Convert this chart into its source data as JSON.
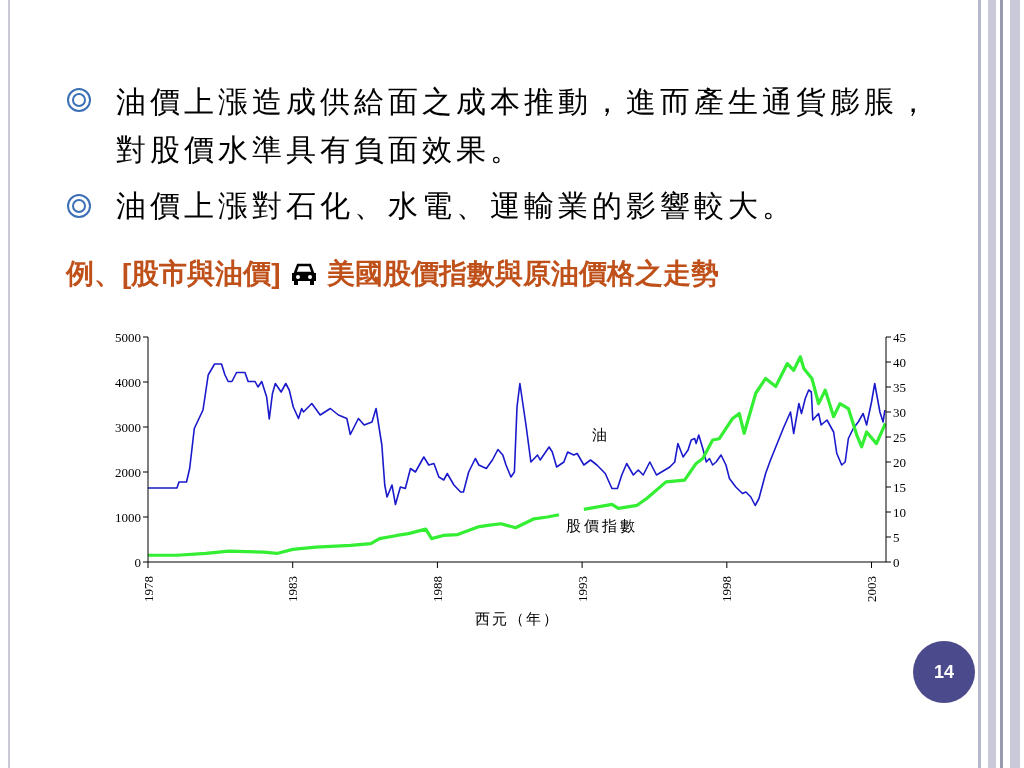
{
  "chart_data": {
    "type": "line",
    "title": "例、[股市與油價]",
    "subtitle": "美國股價指數與原油價格之走勢",
    "xlabel": "西元（年）",
    "annotations": [
      "油價上漲造成供給面之成本推動，進而產生通貨膨脹，對股價水準具有負面效果。",
      "油價上漲對石化、水電、運輸業的影響較大。",
      "14"
    ],
    "xlim": [
      1978,
      2003.5
    ],
    "xticks": [
      1978,
      1983,
      1988,
      1993,
      1998,
      2003
    ],
    "ylim": [
      0,
      5000
    ],
    "yticks": [
      0,
      1000,
      2000,
      3000,
      4000,
      5000
    ],
    "y2lim": [
      0,
      45
    ],
    "y2ticks": [
      0,
      5,
      10,
      15,
      20,
      25,
      30,
      35,
      40,
      45
    ],
    "series": [
      {
        "name": "油",
        "color": "#1a1acc",
        "axis": "y2",
        "x": [
          1978.0,
          1979.0,
          1979.07,
          1979.33,
          1979.44,
          1979.6,
          1979.9,
          1979.96,
          1980.08,
          1980.3,
          1980.54,
          1980.66,
          1980.77,
          1980.9,
          1981.06,
          1981.35,
          1981.46,
          1981.7,
          1981.8,
          1981.93,
          1982.1,
          1982.19,
          1982.3,
          1982.4,
          1982.6,
          1982.76,
          1982.88,
          1983.02,
          1983.2,
          1983.31,
          1983.37,
          1983.66,
          1983.95,
          1984.3,
          1984.58,
          1984.87,
          1984.99,
          1985.27,
          1985.47,
          1985.74,
          1985.88,
          1986.08,
          1986.18,
          1986.26,
          1986.43,
          1986.55,
          1986.72,
          1986.89,
          1987.07,
          1987.24,
          1987.53,
          1987.7,
          1987.88,
          1988.05,
          1988.22,
          1988.34,
          1988.57,
          1988.8,
          1988.9,
          1989.08,
          1989.31,
          1989.43,
          1989.69,
          1989.9,
          1990.09,
          1990.26,
          1990.37,
          1990.54,
          1990.66,
          1990.75,
          1990.85,
          1991.06,
          1991.23,
          1991.46,
          1991.55,
          1991.74,
          1991.86,
          1991.97,
          1992.12,
          1992.37,
          1992.5,
          1992.71,
          1992.83,
          1993.06,
          1993.29,
          1993.51,
          1993.8,
          1994.03,
          1994.22,
          1994.37,
          1994.54,
          1994.77,
          1994.94,
          1995.11,
          1995.34,
          1995.57,
          1995.86,
          1996.03,
          1996.2,
          1996.31,
          1996.49,
          1996.66,
          1996.77,
          1996.89,
          1996.94,
          1997.03,
          1997.17,
          1997.29,
          1997.4,
          1997.51,
          1997.63,
          1997.8,
          1997.97,
          1998.09,
          1998.31,
          1998.54,
          1998.66,
          1998.83,
          1998.98,
          1999.11,
          1999.34,
          1999.51,
          1999.74,
          1999.97,
          2000.2,
          2000.31,
          2000.49,
          2000.58,
          2000.71,
          2000.83,
          2000.92,
          2000.97,
          2001.17,
          2001.26,
          2001.46,
          2001.69,
          2001.8,
          2001.97,
          2002.09,
          2002.2,
          2002.37,
          2002.54,
          2002.71,
          2002.83,
          2003.0,
          2003.11,
          2003.29,
          2003.4,
          2003.46
        ],
        "values": [
          14.8,
          14.8,
          16.0,
          16.0,
          18.7,
          26.7,
          30.4,
          32.7,
          37.4,
          39.6,
          39.6,
          37.4,
          36.1,
          36.1,
          37.9,
          37.9,
          36.1,
          36.1,
          35.0,
          36.1,
          33.0,
          28.6,
          33.7,
          35.7,
          34.0,
          35.7,
          34.4,
          31.0,
          28.7,
          30.7,
          30.0,
          31.7,
          29.4,
          30.7,
          29.4,
          28.7,
          25.5,
          28.7,
          27.4,
          28.0,
          30.7,
          23.4,
          15.4,
          13.0,
          15.4,
          11.5,
          15.0,
          14.7,
          18.7,
          18.0,
          21.0,
          19.4,
          19.7,
          17.0,
          16.4,
          17.7,
          15.4,
          14.0,
          14.0,
          18.0,
          20.7,
          19.4,
          18.7,
          20.4,
          22.5,
          21.4,
          19.4,
          17.0,
          18.0,
          31.0,
          35.7,
          27.4,
          20.0,
          21.4,
          20.4,
          22.0,
          23.0,
          22.0,
          19.0,
          20.0,
          22.0,
          21.4,
          21.7,
          19.4,
          20.4,
          19.4,
          17.7,
          14.7,
          14.7,
          17.4,
          19.7,
          17.4,
          18.4,
          17.4,
          20.0,
          17.4,
          18.4,
          19.0,
          20.0,
          23.7,
          21.0,
          22.4,
          24.4,
          24.7,
          23.7,
          25.4,
          22.7,
          20.0,
          20.7,
          19.4,
          20.0,
          21.4,
          19.4,
          16.7,
          15.0,
          13.7,
          14.0,
          13.0,
          11.3,
          12.7,
          17.7,
          20.4,
          23.7,
          27.0,
          30.0,
          25.7,
          31.7,
          29.7,
          32.7,
          34.4,
          34.0,
          28.4,
          29.7,
          27.4,
          28.4,
          26.0,
          21.7,
          19.4,
          20.0,
          24.7,
          26.7,
          28.0,
          29.7,
          27.4,
          32.0,
          35.7,
          30.0,
          28.0,
          30.4
        ]
      },
      {
        "name": "股價指數",
        "color": "#33ee33",
        "axis": "y",
        "x": [
          1978.0,
          1979.0,
          1980.0,
          1980.8,
          1982.0,
          1982.45,
          1983.0,
          1983.8,
          1985.0,
          1985.7,
          1986.0,
          1986.6,
          1987.0,
          1987.6,
          1987.8,
          1988.2,
          1988.7,
          1989.4,
          1989.8,
          1990.2,
          1990.7,
          1991.34,
          1991.8,
          1992.2,
          1992.6,
          1993.06,
          1994.03,
          1994.25,
          1994.9,
          1995.23,
          1995.9,
          1996.54,
          1996.94,
          1997.17,
          1997.51,
          1997.74,
          1998.2,
          1998.43,
          1998.6,
          1999.0,
          1999.34,
          1999.69,
          2000.09,
          2000.31,
          2000.54,
          2000.66,
          2000.94,
          2001.17,
          2001.4,
          2001.69,
          2001.91,
          2002.2,
          2002.49,
          2002.66,
          2002.83,
          2003.17,
          2003.48
        ],
        "values": [
          150,
          150,
          190,
          240,
          220,
          190,
          280,
          330,
          370,
          410,
          520,
          590,
          630,
          730,
          520,
          590,
          610,
          780,
          820,
          850,
          760,
          960,
          1000,
          1050,
          null,
          1170,
          1280,
          1190,
          1260,
          1410,
          1780,
          1820,
          2190,
          2300,
          2710,
          2740,
          3190,
          3300,
          2860,
          3750,
          4080,
          3900,
          4410,
          4260,
          4560,
          4300,
          4080,
          3520,
          3820,
          3230,
          3520,
          3410,
          2820,
          2560,
          2890,
          2630,
          3080
        ]
      }
    ]
  }
}
